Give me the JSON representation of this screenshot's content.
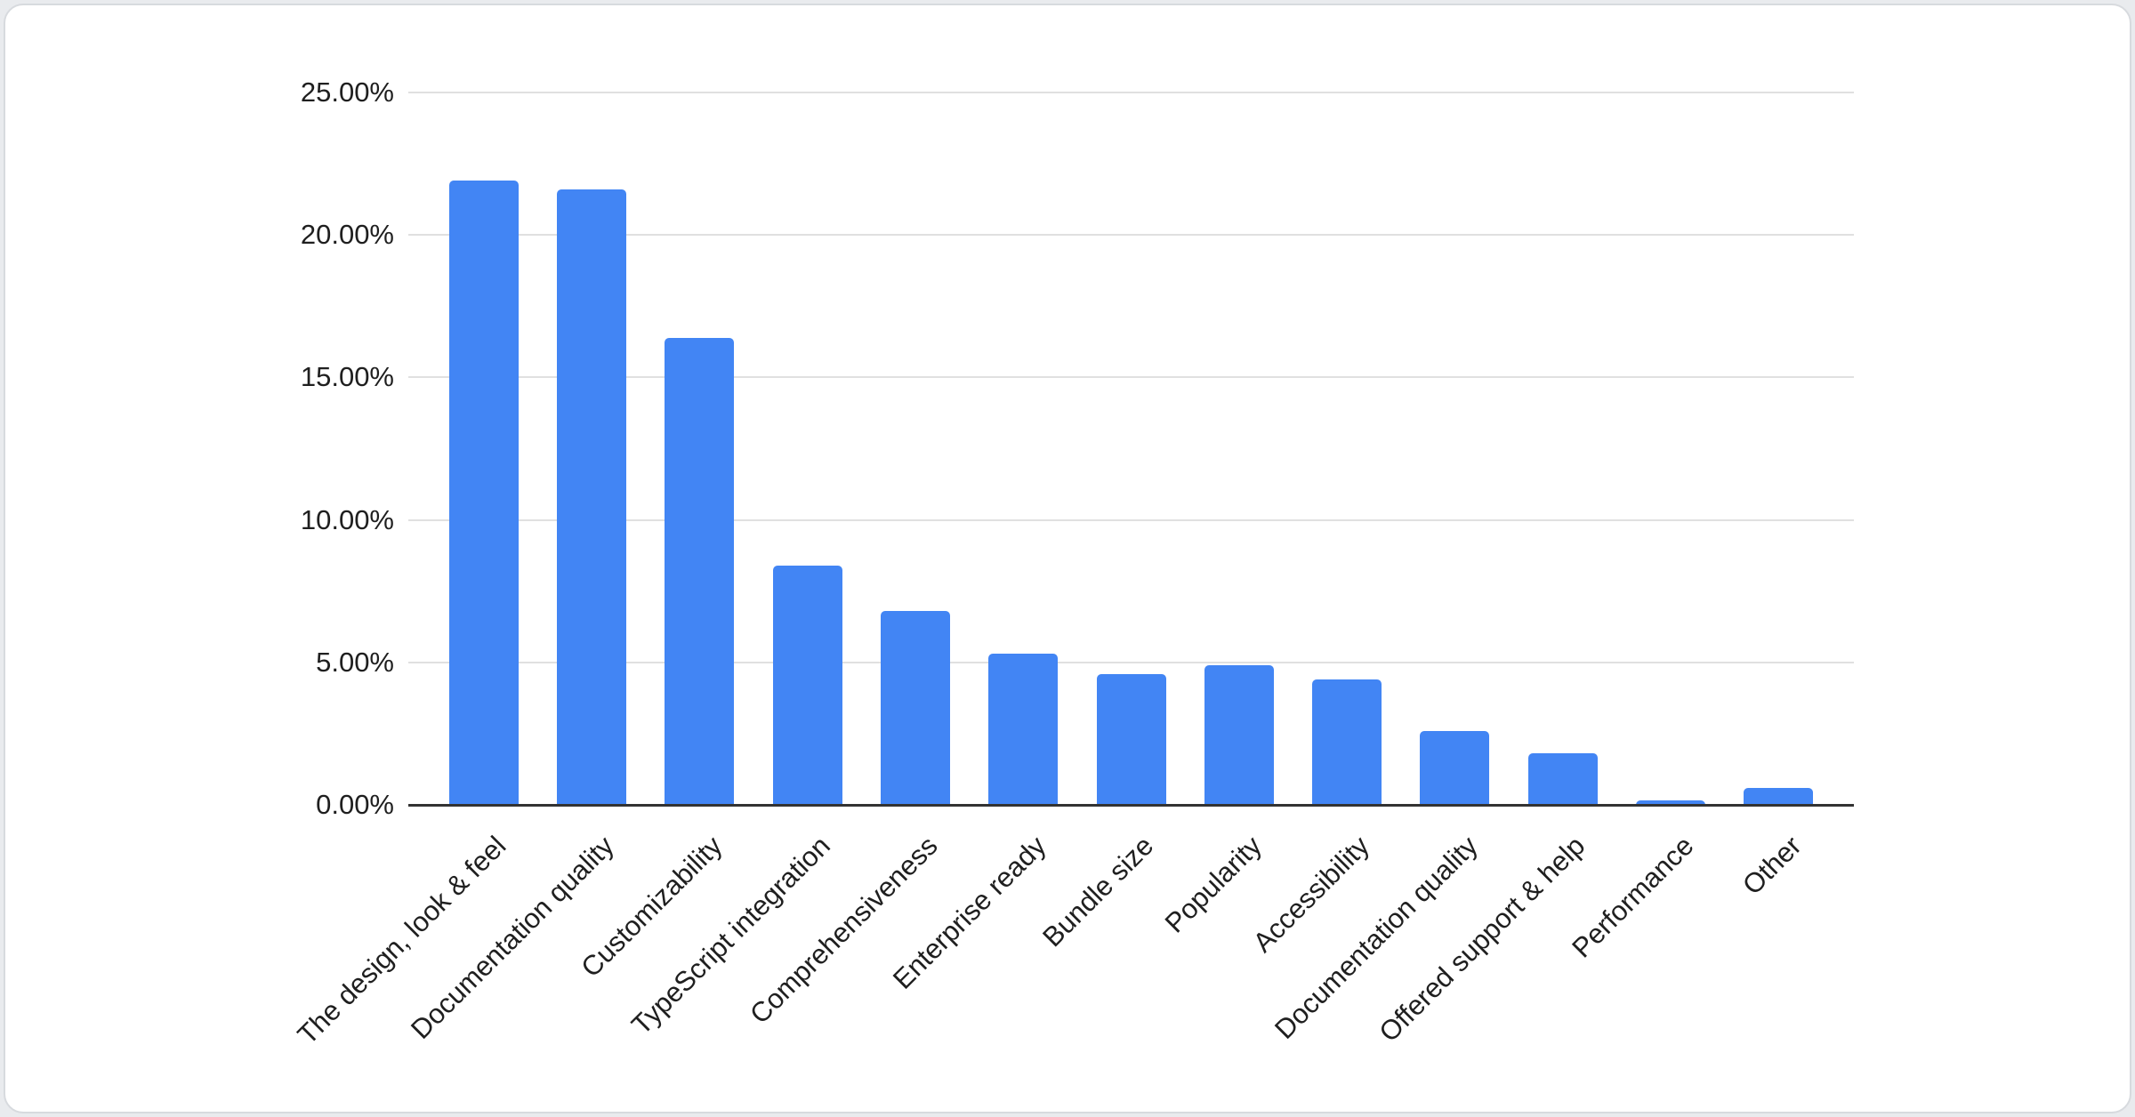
{
  "chart_data": {
    "type": "bar",
    "title": "",
    "categories": [
      "The design, look & feel",
      "Documentation quality",
      "Customizability",
      "TypeScript integration",
      "Comprehensiveness",
      "Enterprise ready",
      "Bundle size",
      "Popularity",
      "Accessibility",
      "Documentation quality",
      "Offered support & help",
      "Performance",
      "Other"
    ],
    "values": [
      21.9,
      21.6,
      16.4,
      8.4,
      6.8,
      5.3,
      4.6,
      4.9,
      4.4,
      2.6,
      1.8,
      0.15,
      0.6
    ],
    "value_format": "percent",
    "xlabel": "",
    "ylabel": "",
    "ylim": [
      0,
      25
    ],
    "yticks": [
      {
        "value": 25,
        "label": "25.00%"
      },
      {
        "value": 20,
        "label": "20.00%"
      },
      {
        "value": 15,
        "label": "15.00%"
      },
      {
        "value": 10,
        "label": "10.00%"
      },
      {
        "value": 5,
        "label": "5.00%"
      },
      {
        "value": 0,
        "label": "0.00%"
      }
    ],
    "grid": true,
    "legend_position": "none",
    "x_label_rotation": -45,
    "colors": {
      "bar": "#4285f4",
      "gridline": "#e0e0e0",
      "axis_line": "#333333",
      "tick_label": "#1f1f1f",
      "card_background": "#ffffff",
      "card_border": "#d7dade",
      "page_background": "#e9ebee"
    }
  }
}
